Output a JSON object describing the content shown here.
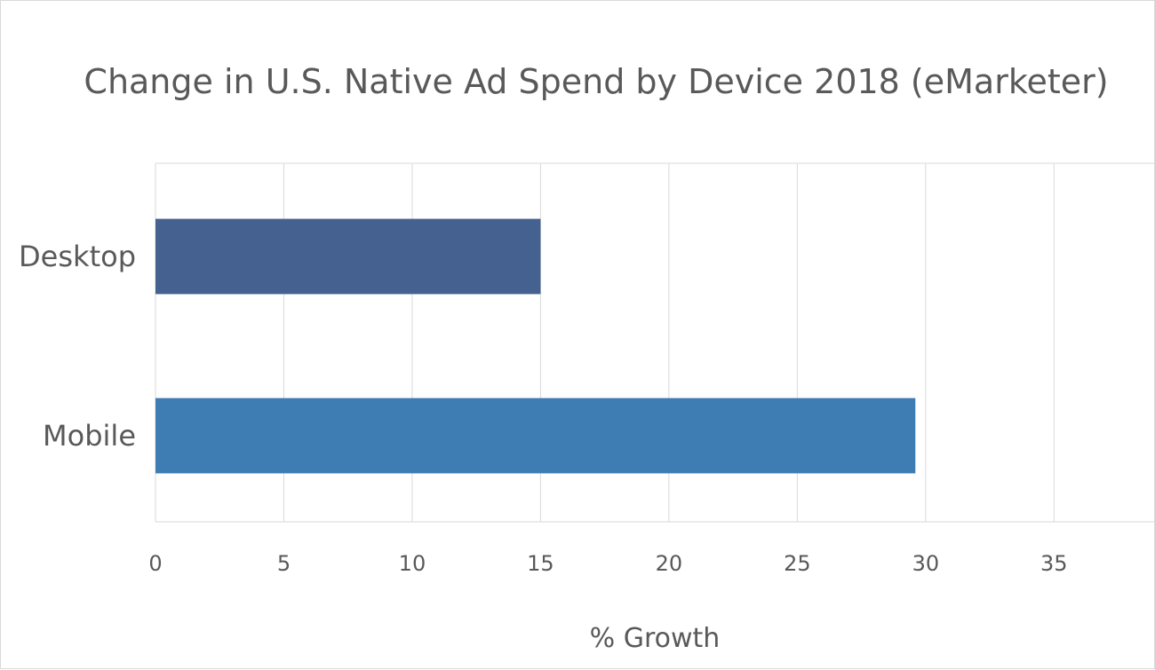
{
  "chart_data": {
    "type": "bar",
    "orientation": "horizontal",
    "title": "Change in U.S. Native Ad Spend by Device 2018 (eMarketer)",
    "xlabel": "% Growth",
    "ylabel": "",
    "categories": [
      "Desktop",
      "Mobile"
    ],
    "values": [
      15,
      29.6
    ],
    "bar_colors": [
      "#44618f",
      "#3e7db3"
    ],
    "xlim": [
      0,
      38.9
    ],
    "xticks": [
      0,
      5,
      10,
      15,
      20,
      25,
      30,
      35
    ],
    "tick_labels": [
      "0",
      "5",
      "10",
      "15",
      "20",
      "25",
      "30",
      "35"
    ],
    "grid": true,
    "gridline_color": "#d9d9d9",
    "text_color": "#595959"
  }
}
